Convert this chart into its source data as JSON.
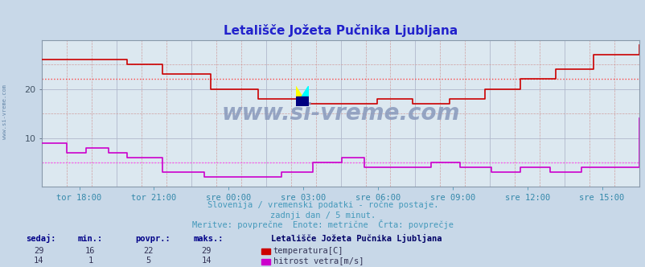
{
  "title": "Letališče Jožeta Pučnika Ljubljana",
  "title_color": "#2222cc",
  "bg_color": "#c8d8e8",
  "plot_bg_color": "#dce8f0",
  "grid_color_solid": "#b0b8cc",
  "grid_color_dashed": "#d0a0a0",
  "xlabel_color": "#3388aa",
  "watermark": "www.si-vreme.com",
  "watermark_color": "#8899bb",
  "subtitle1": "Slovenija / vremenski podatki - ročne postaje.",
  "subtitle2": "zadnji dan / 5 minut.",
  "subtitle3": "Meritve: povprečne  Enote: metrične  Črta: povprečje",
  "subtitle_color": "#4499bb",
  "xlabels": [
    "tor 18:00",
    "tor 21:00",
    "sre 00:00",
    "sre 03:00",
    "sre 06:00",
    "sre 09:00",
    "sre 12:00",
    "sre 15:00"
  ],
  "ylim": [
    0,
    30
  ],
  "yticks": [
    10,
    20
  ],
  "temp_color": "#cc0000",
  "wind_color": "#cc00cc",
  "temp_avg_line": 22,
  "wind_avg_line": 5,
  "temp_avg_color": "#ff4444",
  "wind_avg_color": "#ff44ff",
  "left_label": "www.si-vreme.com",
  "table_headers": [
    "sedaj:",
    "min.:",
    "povpr.:",
    "maks.:"
  ],
  "table_header_color": "#000088",
  "table_row1": [
    "29",
    "16",
    "22",
    "29"
  ],
  "table_row2": [
    "14",
    "1",
    "5",
    "14"
  ],
  "legend_title": "Letališče Jožeta Pučnika Ljubljana",
  "legend_title_color": "#000066",
  "legend_label1": "temperatura[C]",
  "legend_label2": "hitrost vetra[m/s]",
  "legend_color1": "#cc0000",
  "legend_color2": "#cc00cc",
  "n_points": 288,
  "temp_breakpoints": [
    0,
    0.08,
    0.14,
    0.2,
    0.28,
    0.36,
    0.44,
    0.5,
    0.56,
    0.62,
    0.68,
    0.74,
    0.8,
    0.86,
    0.92,
    1.0
  ],
  "temp_vals": [
    26,
    26,
    25,
    23,
    20,
    18,
    17,
    17,
    18,
    17,
    18,
    20,
    22,
    24,
    27,
    29
  ],
  "wind_bp": [
    0,
    0.04,
    0.07,
    0.11,
    0.14,
    0.2,
    0.27,
    0.34,
    0.4,
    0.45,
    0.5,
    0.54,
    0.6,
    0.65,
    0.7,
    0.75,
    0.8,
    0.85,
    0.9,
    0.95,
    1.0
  ],
  "wind_v": [
    9,
    7,
    8,
    7,
    6,
    3,
    2,
    2,
    3,
    5,
    6,
    4,
    4,
    5,
    4,
    3,
    4,
    3,
    4,
    4,
    14
  ]
}
